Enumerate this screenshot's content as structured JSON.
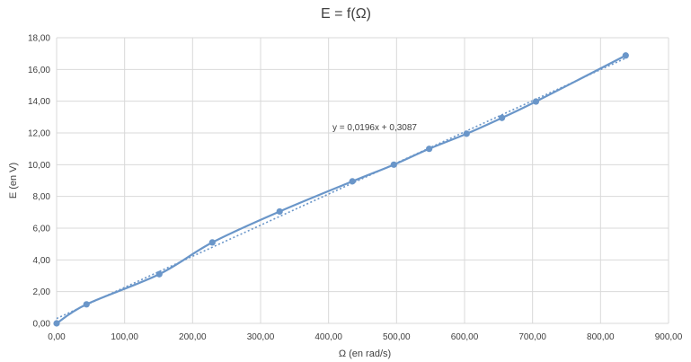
{
  "chart_data": {
    "type": "scatter",
    "title": "E = f(Ω)",
    "xlabel": "Ω (en rad/s)",
    "ylabel": "E (en V)",
    "xlim": [
      0,
      900
    ],
    "ylim": [
      0,
      18
    ],
    "x_ticks": [
      "0,00",
      "100,00",
      "200,00",
      "300,00",
      "400,00",
      "500,00",
      "600,00",
      "700,00",
      "800,00",
      "900,00"
    ],
    "y_ticks": [
      "0,00",
      "2,00",
      "4,00",
      "6,00",
      "8,00",
      "10,00",
      "12,00",
      "14,00",
      "16,00",
      "18,00"
    ],
    "grid": true,
    "series": [
      {
        "color": "#6a96c9",
        "points": [
          {
            "x": 0,
            "y": 0
          },
          {
            "x": 44,
            "y": 1.2
          },
          {
            "x": 151,
            "y": 3.1
          },
          {
            "x": 229,
            "y": 5.1
          },
          {
            "x": 328,
            "y": 7.05
          },
          {
            "x": 435,
            "y": 8.95
          },
          {
            "x": 496,
            "y": 10.0
          },
          {
            "x": 548,
            "y": 11.0
          },
          {
            "x": 603,
            "y": 11.95
          },
          {
            "x": 655,
            "y": 12.95
          },
          {
            "x": 705,
            "y": 13.98
          },
          {
            "x": 837,
            "y": 16.88
          }
        ]
      }
    ],
    "trendline": {
      "slope": 0.0196,
      "intercept": 0.3087,
      "equation": "y = 0,0196x + 0,3087",
      "color": "#6a96c9"
    }
  }
}
